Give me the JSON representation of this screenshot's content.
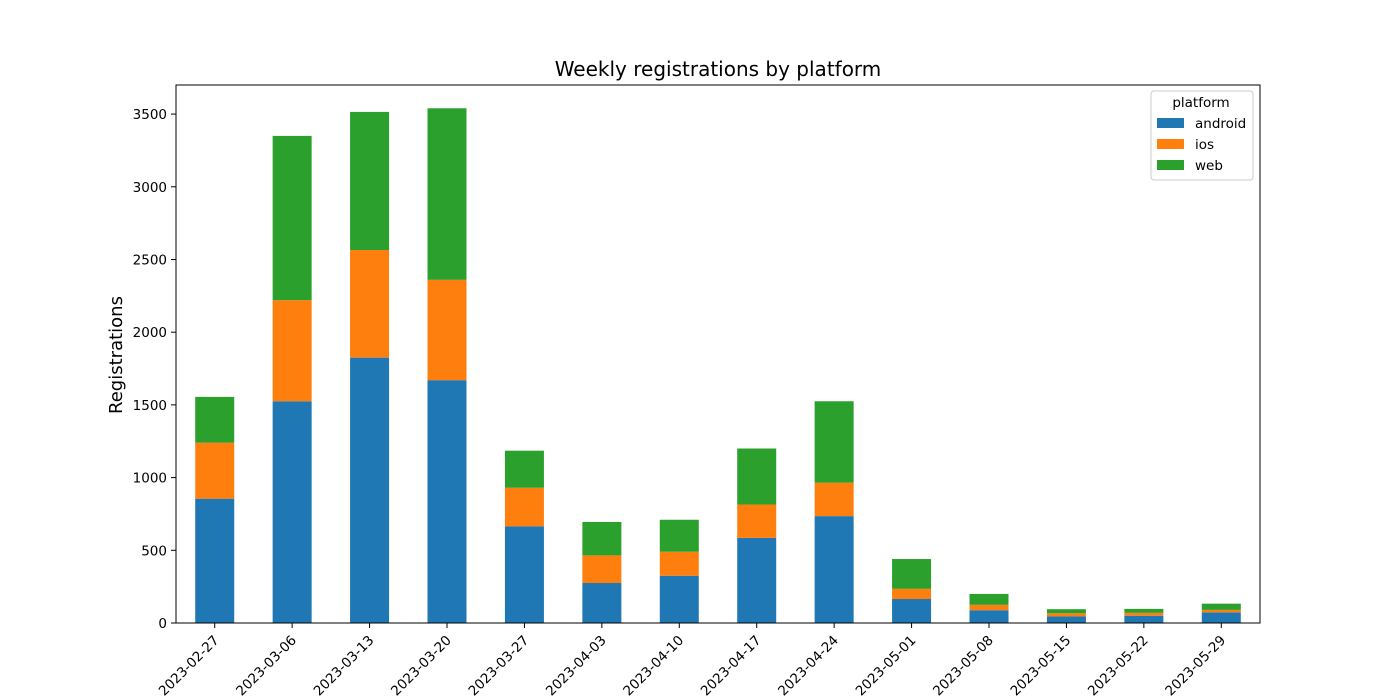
{
  "chart_data": {
    "type": "bar",
    "stacked": true,
    "title": "Weekly registrations by platform",
    "xlabel": "",
    "ylabel": "Registrations",
    "ylim": [
      0,
      3700
    ],
    "yticks": [
      0,
      500,
      1000,
      1500,
      2000,
      2500,
      3000,
      3500
    ],
    "categories": [
      "2023-02-27",
      "2023-03-06",
      "2023-03-13",
      "2023-03-20",
      "2023-03-27",
      "2023-04-03",
      "2023-04-10",
      "2023-04-17",
      "2023-04-24",
      "2023-05-01",
      "2023-05-08",
      "2023-05-15",
      "2023-05-22",
      "2023-05-29"
    ],
    "legend": {
      "title": "platform",
      "placement": "top-right"
    },
    "grid": false,
    "series": [
      {
        "name": "android",
        "color": "#1f77b4",
        "values": [
          855,
          1525,
          1825,
          1670,
          665,
          275,
          325,
          585,
          735,
          165,
          88,
          45,
          50,
          73
        ]
      },
      {
        "name": "ios",
        "color": "#ff7f0e",
        "values": [
          385,
          695,
          740,
          690,
          265,
          190,
          165,
          230,
          230,
          70,
          37,
          22,
          20,
          17
        ]
      },
      {
        "name": "web",
        "color": "#2ca02c",
        "values": [
          315,
          1130,
          950,
          1180,
          255,
          230,
          220,
          385,
          560,
          205,
          75,
          28,
          27,
          43
        ]
      }
    ]
  }
}
